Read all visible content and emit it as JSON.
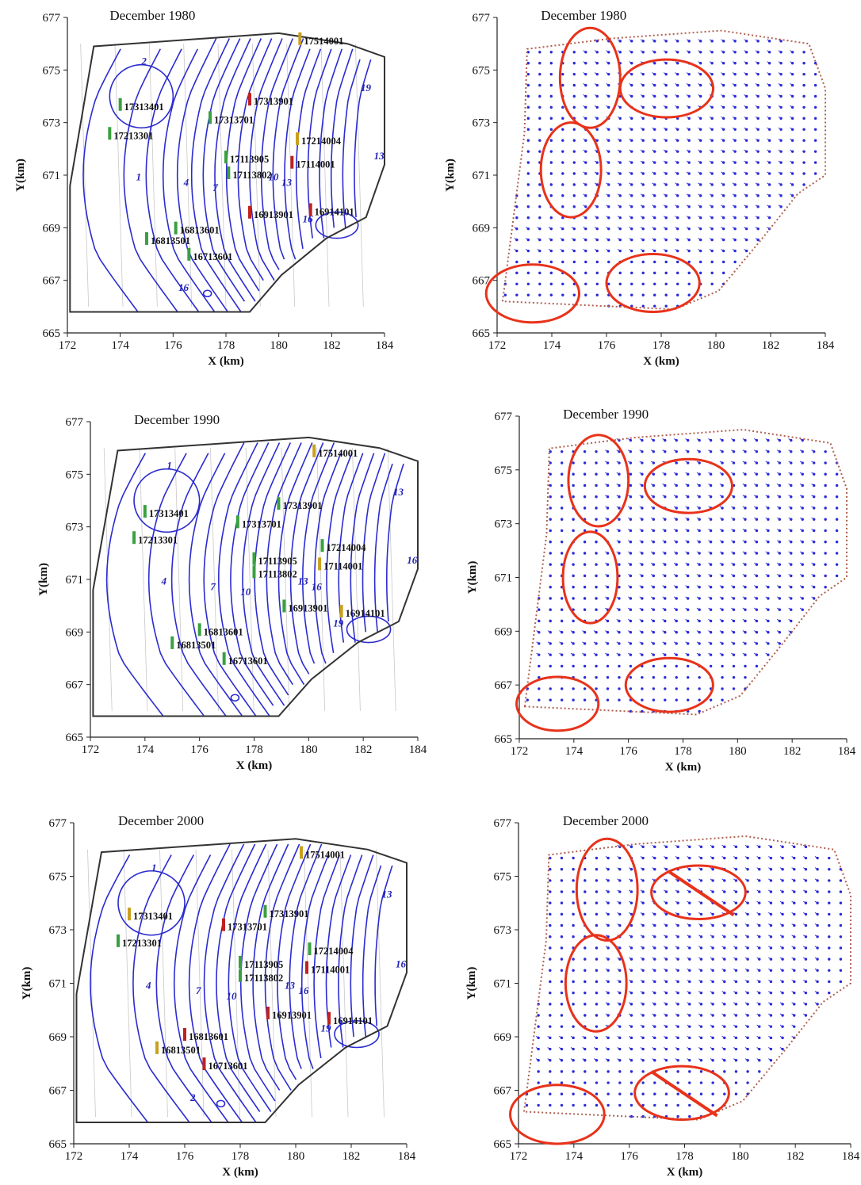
{
  "figure": {
    "panels": [
      {
        "id": "contour-1980",
        "kind": "contour",
        "title": "December 1980",
        "wells": [
          {
            "label": "17514001",
            "x": 180.8,
            "y": 676.1,
            "color": "#c8a020"
          },
          {
            "label": "17313401",
            "x": 174.0,
            "y": 673.6,
            "color": "#3aa040"
          },
          {
            "label": "17313901",
            "x": 178.9,
            "y": 673.8,
            "color": "#c02020"
          },
          {
            "label": "17313701",
            "x": 177.4,
            "y": 673.1,
            "color": "#3aa040"
          },
          {
            "label": "17213301",
            "x": 173.6,
            "y": 672.5,
            "color": "#3aa040"
          },
          {
            "label": "17214004",
            "x": 180.7,
            "y": 672.3,
            "color": "#c8a020"
          },
          {
            "label": "17113905",
            "x": 178.0,
            "y": 671.6,
            "color": "#3aa040"
          },
          {
            "label": "17114001",
            "x": 180.5,
            "y": 671.4,
            "color": "#c02020"
          },
          {
            "label": "17113802",
            "x": 178.1,
            "y": 671.0,
            "color": "#3aa040"
          },
          {
            "label": "16913901",
            "x": 178.9,
            "y": 669.5,
            "color": "#c02020"
          },
          {
            "label": "16914101",
            "x": 181.2,
            "y": 669.6,
            "color": "#c02020"
          },
          {
            "label": "16813601",
            "x": 176.1,
            "y": 668.9,
            "color": "#3aa040"
          },
          {
            "label": "16813501",
            "x": 175.0,
            "y": 668.5,
            "color": "#3aa040"
          },
          {
            "label": "16713601",
            "x": 176.6,
            "y": 667.9,
            "color": "#3aa040"
          }
        ],
        "contour_labels": [
          "2",
          "1",
          "4",
          "7",
          "10",
          "13",
          "16",
          "19",
          "13",
          "16"
        ]
      },
      {
        "id": "vector-1980",
        "kind": "vector",
        "title": "December 1980",
        "zones": [
          {
            "cx": 175.4,
            "cy": 674.7,
            "rx": 1.1,
            "ry": 1.9,
            "slash": false
          },
          {
            "cx": 178.2,
            "cy": 674.3,
            "rx": 1.7,
            "ry": 1.1,
            "slash": false
          },
          {
            "cx": 174.7,
            "cy": 671.2,
            "rx": 1.1,
            "ry": 1.8,
            "slash": false
          },
          {
            "cx": 173.3,
            "cy": 666.5,
            "rx": 1.7,
            "ry": 1.1,
            "slash": false
          },
          {
            "cx": 177.7,
            "cy": 666.9,
            "rx": 1.7,
            "ry": 1.1,
            "slash": false
          }
        ]
      },
      {
        "id": "contour-1990",
        "kind": "contour",
        "title": "December 1990",
        "wells": [
          {
            "label": "17514001",
            "x": 180.2,
            "y": 675.8,
            "color": "#c8a020"
          },
          {
            "label": "17313401",
            "x": 174.0,
            "y": 673.5,
            "color": "#3aa040"
          },
          {
            "label": "17313901",
            "x": 178.9,
            "y": 673.8,
            "color": "#3aa040"
          },
          {
            "label": "17313701",
            "x": 177.4,
            "y": 673.1,
            "color": "#3aa040"
          },
          {
            "label": "17213301",
            "x": 173.6,
            "y": 672.5,
            "color": "#3aa040"
          },
          {
            "label": "17214004",
            "x": 180.5,
            "y": 672.2,
            "color": "#3aa040"
          },
          {
            "label": "17113905",
            "x": 178.0,
            "y": 671.7,
            "color": "#3aa040"
          },
          {
            "label": "17114001",
            "x": 180.4,
            "y": 671.5,
            "color": "#c8a020"
          },
          {
            "label": "17113802",
            "x": 178.0,
            "y": 671.2,
            "color": "#3aa040"
          },
          {
            "label": "16913901",
            "x": 179.1,
            "y": 669.9,
            "color": "#3aa040"
          },
          {
            "label": "16914101",
            "x": 181.2,
            "y": 669.7,
            "color": "#c8a020"
          },
          {
            "label": "16813601",
            "x": 176.0,
            "y": 669.0,
            "color": "#3aa040"
          },
          {
            "label": "16813501",
            "x": 175.0,
            "y": 668.5,
            "color": "#3aa040"
          },
          {
            "label": "16713601",
            "x": 176.9,
            "y": 667.9,
            "color": "#3aa040"
          }
        ],
        "contour_labels": [
          "1",
          "4",
          "7",
          "10",
          "13",
          "16",
          "19",
          "13",
          "16"
        ]
      },
      {
        "id": "vector-1990",
        "kind": "vector",
        "title": "December 1990",
        "zones": [
          {
            "cx": 174.9,
            "cy": 674.6,
            "rx": 1.1,
            "ry": 1.7,
            "slash": false
          },
          {
            "cx": 178.2,
            "cy": 674.4,
            "rx": 1.6,
            "ry": 1.0,
            "slash": false
          },
          {
            "cx": 174.6,
            "cy": 671.0,
            "rx": 1.0,
            "ry": 1.7,
            "slash": false
          },
          {
            "cx": 173.4,
            "cy": 666.3,
            "rx": 1.5,
            "ry": 1.0,
            "slash": false
          },
          {
            "cx": 177.5,
            "cy": 667.0,
            "rx": 1.6,
            "ry": 1.0,
            "slash": false
          }
        ]
      },
      {
        "id": "contour-2000",
        "kind": "contour",
        "title": "December 2000",
        "wells": [
          {
            "label": "17514001",
            "x": 180.2,
            "y": 675.8,
            "color": "#c8a020"
          },
          {
            "label": "17313401",
            "x": 174.0,
            "y": 673.5,
            "color": "#c8a020"
          },
          {
            "label": "17313901",
            "x": 178.9,
            "y": 673.6,
            "color": "#3aa040"
          },
          {
            "label": "17313701",
            "x": 177.4,
            "y": 673.1,
            "color": "#c02020"
          },
          {
            "label": "17213301",
            "x": 173.6,
            "y": 672.5,
            "color": "#3aa040"
          },
          {
            "label": "17214004",
            "x": 180.5,
            "y": 672.2,
            "color": "#3aa040"
          },
          {
            "label": "17113905",
            "x": 178.0,
            "y": 671.7,
            "color": "#3aa040"
          },
          {
            "label": "17114001",
            "x": 180.4,
            "y": 671.5,
            "color": "#c02020"
          },
          {
            "label": "17113802",
            "x": 178.0,
            "y": 671.2,
            "color": "#3aa040"
          },
          {
            "label": "16913901",
            "x": 179.0,
            "y": 669.8,
            "color": "#c02020"
          },
          {
            "label": "16914101",
            "x": 181.2,
            "y": 669.6,
            "color": "#c02020"
          },
          {
            "label": "16813601",
            "x": 176.0,
            "y": 669.0,
            "color": "#c02020"
          },
          {
            "label": "16813501",
            "x": 175.0,
            "y": 668.5,
            "color": "#c8a020"
          },
          {
            "label": "16713601",
            "x": 176.7,
            "y": 667.9,
            "color": "#c02020"
          }
        ],
        "contour_labels": [
          "1",
          "4",
          "7",
          "10",
          "13",
          "16",
          "19",
          "13",
          "16",
          "2"
        ]
      },
      {
        "id": "vector-2000",
        "kind": "vector",
        "title": "December 2000",
        "zones": [
          {
            "cx": 175.2,
            "cy": 674.5,
            "rx": 1.1,
            "ry": 1.9,
            "slash": false
          },
          {
            "cx": 178.5,
            "cy": 674.4,
            "rx": 1.7,
            "ry": 1.0,
            "slash": true
          },
          {
            "cx": 174.8,
            "cy": 671.0,
            "rx": 1.1,
            "ry": 1.8,
            "slash": false
          },
          {
            "cx": 173.4,
            "cy": 666.1,
            "rx": 1.7,
            "ry": 1.1,
            "slash": false
          },
          {
            "cx": 177.9,
            "cy": 666.9,
            "rx": 1.7,
            "ry": 1.0,
            "slash": true
          }
        ]
      }
    ]
  },
  "chart_data": [
    {
      "type": "contour",
      "title": "December 1980",
      "xlabel": "X (km)",
      "ylabel": "Y(km)",
      "xlim": [
        172,
        184
      ],
      "ylim": [
        665,
        677
      ],
      "xticks": [
        "172",
        "174",
        "176",
        "178",
        "180",
        "182",
        "184"
      ],
      "yticks": [
        "665",
        "667",
        "669",
        "671",
        "673",
        "675",
        "677"
      ],
      "contour_levels": [
        1,
        2,
        4,
        7,
        10,
        13,
        16,
        19
      ]
    },
    {
      "type": "vector",
      "title": "December 1980",
      "xlabel": "X (km)",
      "ylabel": "Y(km)",
      "xlim": [
        172,
        184
      ],
      "ylim": [
        665,
        677
      ],
      "xticks": [
        "172",
        "174",
        "176",
        "178",
        "180",
        "182",
        "184"
      ],
      "yticks": [
        "665",
        "667",
        "669",
        "671",
        "673",
        "675",
        "677"
      ]
    },
    {
      "type": "contour",
      "title": "December 1990",
      "xlabel": "X (km)",
      "ylabel": "Y(km)",
      "xlim": [
        172,
        184
      ],
      "ylim": [
        665,
        677
      ],
      "xticks": [
        "172",
        "174",
        "176",
        "178",
        "180",
        "182",
        "184"
      ],
      "yticks": [
        "665",
        "667",
        "669",
        "671",
        "673",
        "675",
        "677"
      ],
      "contour_levels": [
        1,
        4,
        7,
        10,
        13,
        16,
        19
      ]
    },
    {
      "type": "vector",
      "title": "December 1990",
      "xlabel": "X (km)",
      "ylabel": "Y(km)",
      "xlim": [
        172,
        184
      ],
      "ylim": [
        665,
        677
      ],
      "xticks": [
        "172",
        "174",
        "176",
        "178",
        "180",
        "182",
        "184"
      ],
      "yticks": [
        "665",
        "667",
        "669",
        "671",
        "673",
        "675",
        "677"
      ]
    },
    {
      "type": "contour",
      "title": "December 2000",
      "xlabel": "X (km)",
      "ylabel": "Y(km)",
      "xlim": [
        172,
        184
      ],
      "ylim": [
        665,
        677
      ],
      "xticks": [
        "172",
        "174",
        "176",
        "178",
        "180",
        "182",
        "184"
      ],
      "yticks": [
        "665",
        "667",
        "669",
        "671",
        "673",
        "675",
        "677"
      ],
      "contour_levels": [
        1,
        2,
        4,
        7,
        10,
        13,
        16,
        19
      ]
    },
    {
      "type": "vector",
      "title": "December 2000",
      "xlabel": "X (km)",
      "ylabel": "Y(km)",
      "xlim": [
        172,
        184
      ],
      "ylim": [
        665,
        677
      ],
      "xticks": [
        "172",
        "174",
        "176",
        "178",
        "180",
        "182",
        "184"
      ],
      "yticks": [
        "665",
        "667",
        "669",
        "671",
        "673",
        "675",
        "677"
      ]
    }
  ],
  "colors": {
    "contour": "#2b2bd0",
    "vector": "#3a3ae0",
    "zone": "#e8321a",
    "boundary": "#333333"
  }
}
